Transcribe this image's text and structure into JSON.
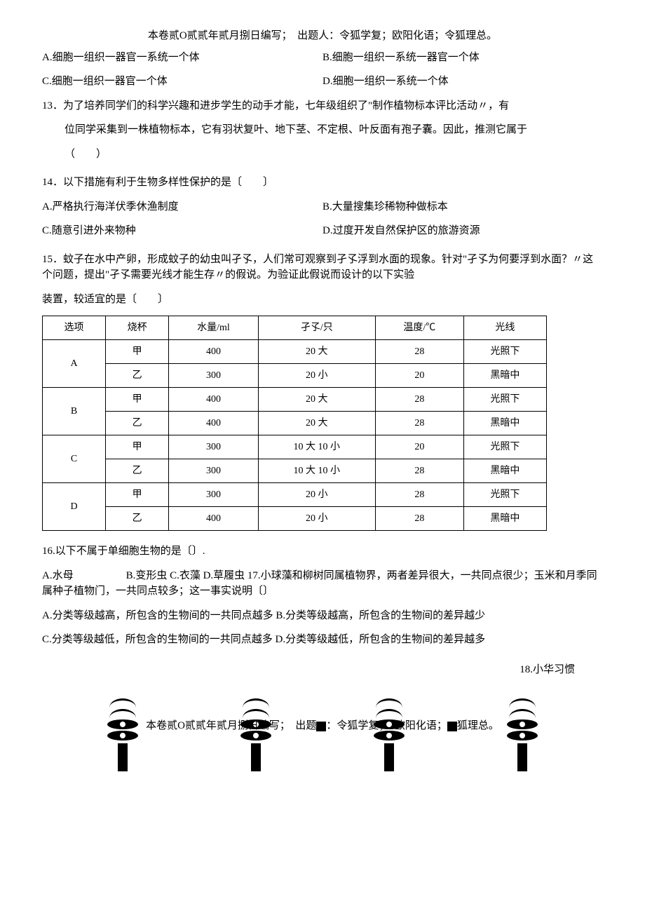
{
  "header": "本卷贰O贰贰年贰月捌日编写；　出题人：令狐学复；欧阳化语；令狐理总。",
  "q12": {
    "A": "A.细胞一组织一器官一系统一个体",
    "B": "B.细胞一组织一系统一器官一个体",
    "C": "C.细胞一组织一器官一个体",
    "D": "D.细胞一组织一系统一个体"
  },
  "q13": {
    "stem1": "13．为了培养同学们的科学兴趣和进步学生的动手才能，七年级组织了\"制作植物标本评比活动〃，有",
    "stem2": "位同学采集到一株植物标本，它有羽状复叶、地下茎、不定根、叶反面有孢子囊。因此，推测它属于",
    "paren": "（　　）"
  },
  "q14": {
    "stem": "14．以下措施有利于生物多样性保护的是〔　　〕",
    "A": "A.严格执行海洋伏季休渔制度",
    "B": "B.大量搜集珍稀物种做标本",
    "C": "C.随意引进外来物种",
    "D": "D.过度开发自然保护区的旅游资源"
  },
  "q15": {
    "stem1": "15．蚊子在水中产卵，形成蚊子的幼虫叫孑孓，人们常可观察到孑孓浮到水面的现象。针对\"孑孓为何要浮到水面？〃这个问题，提出\"孑孓需要光线才能生存〃的假说。为验证此假说而设计的以下实验",
    "stem2": "装置，较适宜的是〔　　〕",
    "table": {
      "headers": [
        "选项",
        "烧杯",
        "水量/ml",
        "孑孓/只",
        "温度/℃",
        "光线"
      ],
      "rows": [
        [
          "A",
          "甲",
          "400",
          "20 大",
          "28",
          "光照下"
        ],
        [
          "",
          "乙",
          "300",
          "20 小",
          "20",
          "黑暗中"
        ],
        [
          "B",
          "甲",
          "400",
          "20 大",
          "28",
          "光照下"
        ],
        [
          "",
          "乙",
          "400",
          "20 大",
          "28",
          "黑暗中"
        ],
        [
          "C",
          "甲",
          "300",
          "10 大 10 小",
          "20",
          "光照下"
        ],
        [
          "",
          "乙",
          "300",
          "10 大 10 小",
          "28",
          "黑暗中"
        ],
        [
          "D",
          "甲",
          "300",
          "20 小",
          "28",
          "光照下"
        ],
        [
          "",
          "乙",
          "400",
          "20 小",
          "28",
          "黑暗中"
        ]
      ]
    }
  },
  "q16": {
    "stem": "16.以下不属于单细胞生物的是〔〕.",
    "opts": "A.水母　　　　　B.变形虫 C.衣藻 D.草履虫 17.小球藻和柳树同属植物界，两者差异很大，一共同点很少；玉米和月季同属种子植物门，一共同点较多；这一事实说明〔〕",
    "A": "A.分类等级越高，所包含的生物间的一共同点越多 B.分类等级越高，所包含的生物间的差异越少",
    "C": "C.分类等级越低，所包含的生物间的一共同点越多 D.分类等级越低，所包含的生物间的差异越多"
  },
  "q18": "18.小华习惯",
  "footer": {
    "pre": "本卷贰O贰贰年贰月捌日编写；　出题",
    "mid": "：令狐学复；　欧阳化语；",
    "post": "狐理总。"
  }
}
